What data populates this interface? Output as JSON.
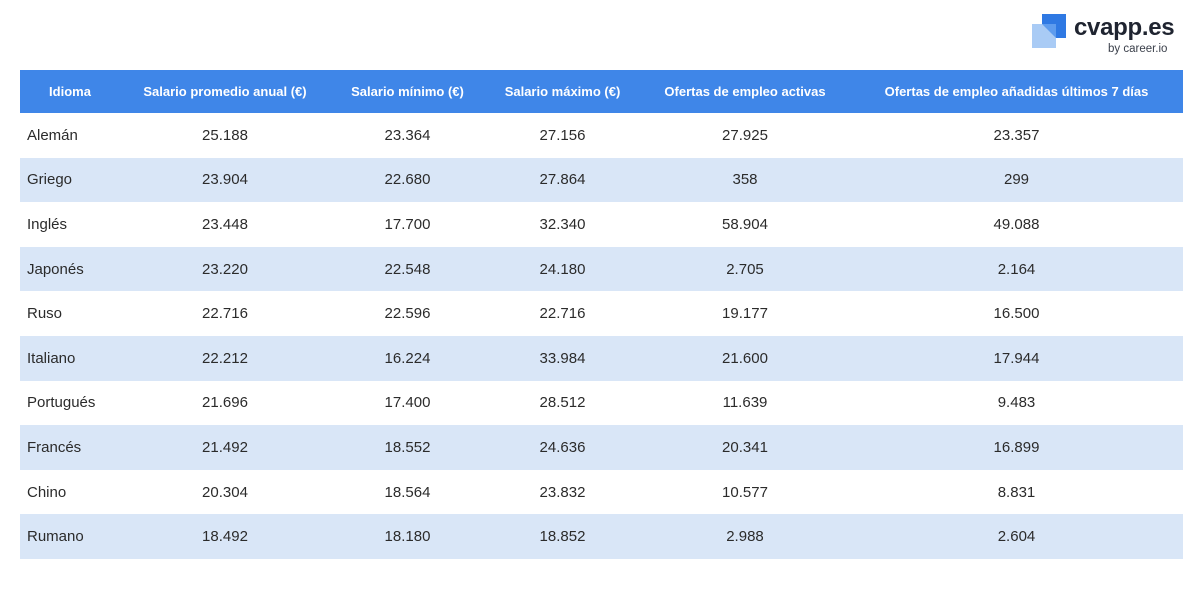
{
  "brand": {
    "name": "cvapp.es",
    "tagline": "by career.io",
    "colors": {
      "mark_dark": "#2f79e3",
      "mark_light": "#a9cbf5"
    }
  },
  "colors": {
    "header_bg": "#3f86e8",
    "header_text": "#ffffff",
    "stripe_bg": "#d9e6f7"
  },
  "chart_data": {
    "type": "table",
    "columns": [
      "Idioma",
      "Salario promedio anual (€)",
      "Salario mínimo (€)",
      "Salario máximo (€)",
      "Ofertas de empleo activas",
      "Ofertas de empleo añadidas últimos 7 días"
    ],
    "rows": [
      [
        "Alemán",
        "25.188",
        "23.364",
        "27.156",
        "27.925",
        "23.357"
      ],
      [
        "Griego",
        "23.904",
        "22.680",
        "27.864",
        "358",
        "299"
      ],
      [
        "Inglés",
        "23.448",
        "17.700",
        "32.340",
        "58.904",
        "49.088"
      ],
      [
        "Japonés",
        "23.220",
        "22.548",
        "24.180",
        "2.705",
        "2.164"
      ],
      [
        "Ruso",
        "22.716",
        "22.596",
        "22.716",
        "19.177",
        "16.500"
      ],
      [
        "Italiano",
        "22.212",
        "16.224",
        "33.984",
        "21.600",
        "17.944"
      ],
      [
        "Portugués",
        "21.696",
        "17.400",
        "28.512",
        "11.639",
        "9.483"
      ],
      [
        "Francés",
        "21.492",
        "18.552",
        "24.636",
        "20.341",
        "16.899"
      ],
      [
        "Chino",
        "20.304",
        "18.564",
        "23.832",
        "10.577",
        "8.831"
      ],
      [
        "Rumano",
        "18.492",
        "18.180",
        "18.852",
        "2.988",
        "2.604"
      ]
    ]
  }
}
